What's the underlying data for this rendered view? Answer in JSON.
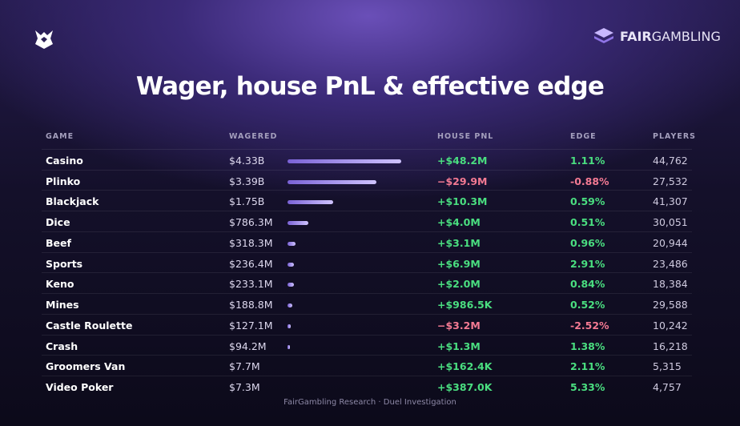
{
  "header": {
    "brand_bold": "FAIR",
    "brand": "GAMBLING",
    "title": "Wager, house PnL & effective edge"
  },
  "table": {
    "columns": [
      "GAME",
      "WAGERED",
      "HOUSE PNL",
      "EDGE",
      "PLAYERS"
    ],
    "rows": [
      {
        "game": "Casino",
        "wagered": {
          "value": 4330000000,
          "label": "$4.33B"
        },
        "pnl": "+$48.2M",
        "edge": "1.11%",
        "players": "44,762"
      },
      {
        "game": "Plinko",
        "wagered": {
          "value": 3390000000,
          "label": "$3.39B"
        },
        "pnl": "−$29.9M",
        "edge": "-0.88%",
        "players": "27,532"
      },
      {
        "game": "Blackjack",
        "wagered": {
          "value": 1750000000,
          "label": "$1.75B"
        },
        "pnl": "+$10.3M",
        "edge": "0.59%",
        "players": "41,307"
      },
      {
        "game": "Dice",
        "wagered": {
          "value": 786300000,
          "label": "$786.3M"
        },
        "pnl": "+$4.0M",
        "edge": "0.51%",
        "players": "30,051"
      },
      {
        "game": "Beef",
        "wagered": {
          "value": 318300000,
          "label": "$318.3M"
        },
        "pnl": "+$3.1M",
        "edge": "0.96%",
        "players": "20,944"
      },
      {
        "game": "Sports",
        "wagered": {
          "value": 236400000,
          "label": "$236.4M"
        },
        "pnl": "+$6.9M",
        "edge": "2.91%",
        "players": "23,486"
      },
      {
        "game": "Keno",
        "wagered": {
          "value": 233100000,
          "label": "$233.1M"
        },
        "pnl": "+$2.0M",
        "edge": "0.84%",
        "players": "18,384"
      },
      {
        "game": "Mines",
        "wagered": {
          "value": 188800000,
          "label": "$188.8M"
        },
        "pnl": "+$986.5K",
        "edge": "0.52%",
        "players": "29,588"
      },
      {
        "game": "Castle Roulette",
        "wagered": {
          "value": 127100000,
          "label": "$127.1M"
        },
        "pnl": "−$3.2M",
        "edge": "-2.52%",
        "players": "10,242"
      },
      {
        "game": "Crash",
        "wagered": {
          "value": 94200000,
          "label": "$94.2M"
        },
        "pnl": "+$1.3M",
        "edge": "1.38%",
        "players": "16,218"
      },
      {
        "game": "Groomers Van",
        "wagered": {
          "value": 7700000,
          "label": "$7.7M"
        },
        "pnl": "+$162.4K",
        "edge": "2.11%",
        "players": "5,315"
      },
      {
        "game": "Video Poker",
        "wagered": {
          "value": 7300000,
          "label": "$7.3M"
        },
        "pnl": "+$387.0K",
        "edge": "5.33%",
        "players": "4,757"
      }
    ]
  },
  "footer": "FairGambling Research · Duel Investigation"
}
